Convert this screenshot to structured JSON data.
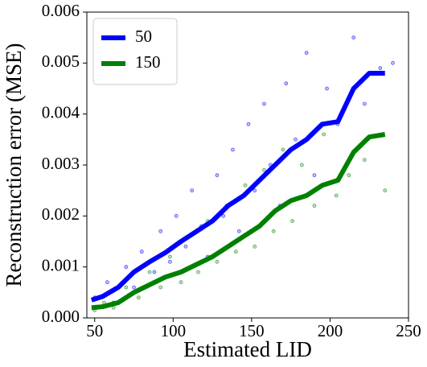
{
  "chart_data": {
    "type": "line",
    "x_label": "Estimated LID",
    "y_label": "Reconstruction error (MSE)",
    "xlim": [
      45,
      250
    ],
    "xticks": [
      50,
      100,
      150,
      200,
      250
    ],
    "ylim": [
      0,
      0.006
    ],
    "yticks": [
      {
        "value": 0,
        "label": "0.000"
      },
      0.001,
      0.002,
      0.003,
      0.004,
      0.005,
      0.006
    ],
    "legend": "upper left",
    "series": [
      {
        "type": "scatter",
        "color": "#0000ff",
        "x": [
          50,
          58,
          62,
          70,
          75,
          80,
          88,
          92,
          98,
          102,
          108,
          112,
          118,
          122,
          128,
          132,
          138,
          142,
          148,
          152,
          158,
          162,
          168,
          172,
          178,
          185,
          190,
          198,
          205,
          215,
          222,
          232,
          240
        ],
        "values": [
          0.0004,
          0.0007,
          0.0003,
          0.001,
          0.0006,
          0.0013,
          0.0009,
          0.0017,
          0.0011,
          0.002,
          0.0014,
          0.0025,
          0.0018,
          0.0012,
          0.0028,
          0.002,
          0.0033,
          0.0017,
          0.0038,
          0.0025,
          0.0042,
          0.003,
          0.0022,
          0.0046,
          0.0035,
          0.0052,
          0.0028,
          0.0045,
          0.0038,
          0.0055,
          0.0042,
          0.0049,
          0.005
        ]
      },
      {
        "type": "scatter",
        "color": "#008000",
        "x": [
          50,
          56,
          62,
          70,
          78,
          85,
          92,
          98,
          105,
          110,
          116,
          122,
          128,
          134,
          140,
          146,
          152,
          158,
          164,
          170,
          176,
          182,
          190,
          196,
          204,
          212,
          222,
          235
        ],
        "values": [
          0.00015,
          0.0003,
          0.0002,
          0.0006,
          0.0004,
          0.0009,
          0.0006,
          0.0012,
          0.0007,
          0.0016,
          0.0009,
          0.0019,
          0.0011,
          0.0022,
          0.0013,
          0.0026,
          0.0014,
          0.0029,
          0.0017,
          0.0033,
          0.0019,
          0.003,
          0.0022,
          0.0036,
          0.0024,
          0.0028,
          0.0031,
          0.0025
        ]
      },
      {
        "type": "line",
        "name": "50",
        "color": "#0000ff",
        "x": [
          48,
          55,
          65,
          75,
          85,
          95,
          105,
          115,
          125,
          135,
          145,
          155,
          165,
          175,
          185,
          195,
          205,
          215,
          225,
          235
        ],
        "values": [
          0.00035,
          0.00042,
          0.0006,
          0.0009,
          0.0011,
          0.00128,
          0.0015,
          0.0017,
          0.0019,
          0.0022,
          0.0024,
          0.0027,
          0.003,
          0.0033,
          0.0035,
          0.0038,
          0.00385,
          0.0045,
          0.0048,
          0.0048
        ]
      },
      {
        "type": "line",
        "name": "150",
        "color": "#008000",
        "x": [
          48,
          55,
          65,
          75,
          85,
          95,
          105,
          115,
          125,
          135,
          145,
          155,
          165,
          175,
          185,
          195,
          205,
          215,
          225,
          235
        ],
        "values": [
          0.0002,
          0.00022,
          0.0003,
          0.0005,
          0.00065,
          0.0008,
          0.0009,
          0.00105,
          0.0012,
          0.0014,
          0.0016,
          0.0018,
          0.0021,
          0.0023,
          0.0024,
          0.0026,
          0.0027,
          0.00325,
          0.00355,
          0.0036
        ]
      }
    ]
  }
}
